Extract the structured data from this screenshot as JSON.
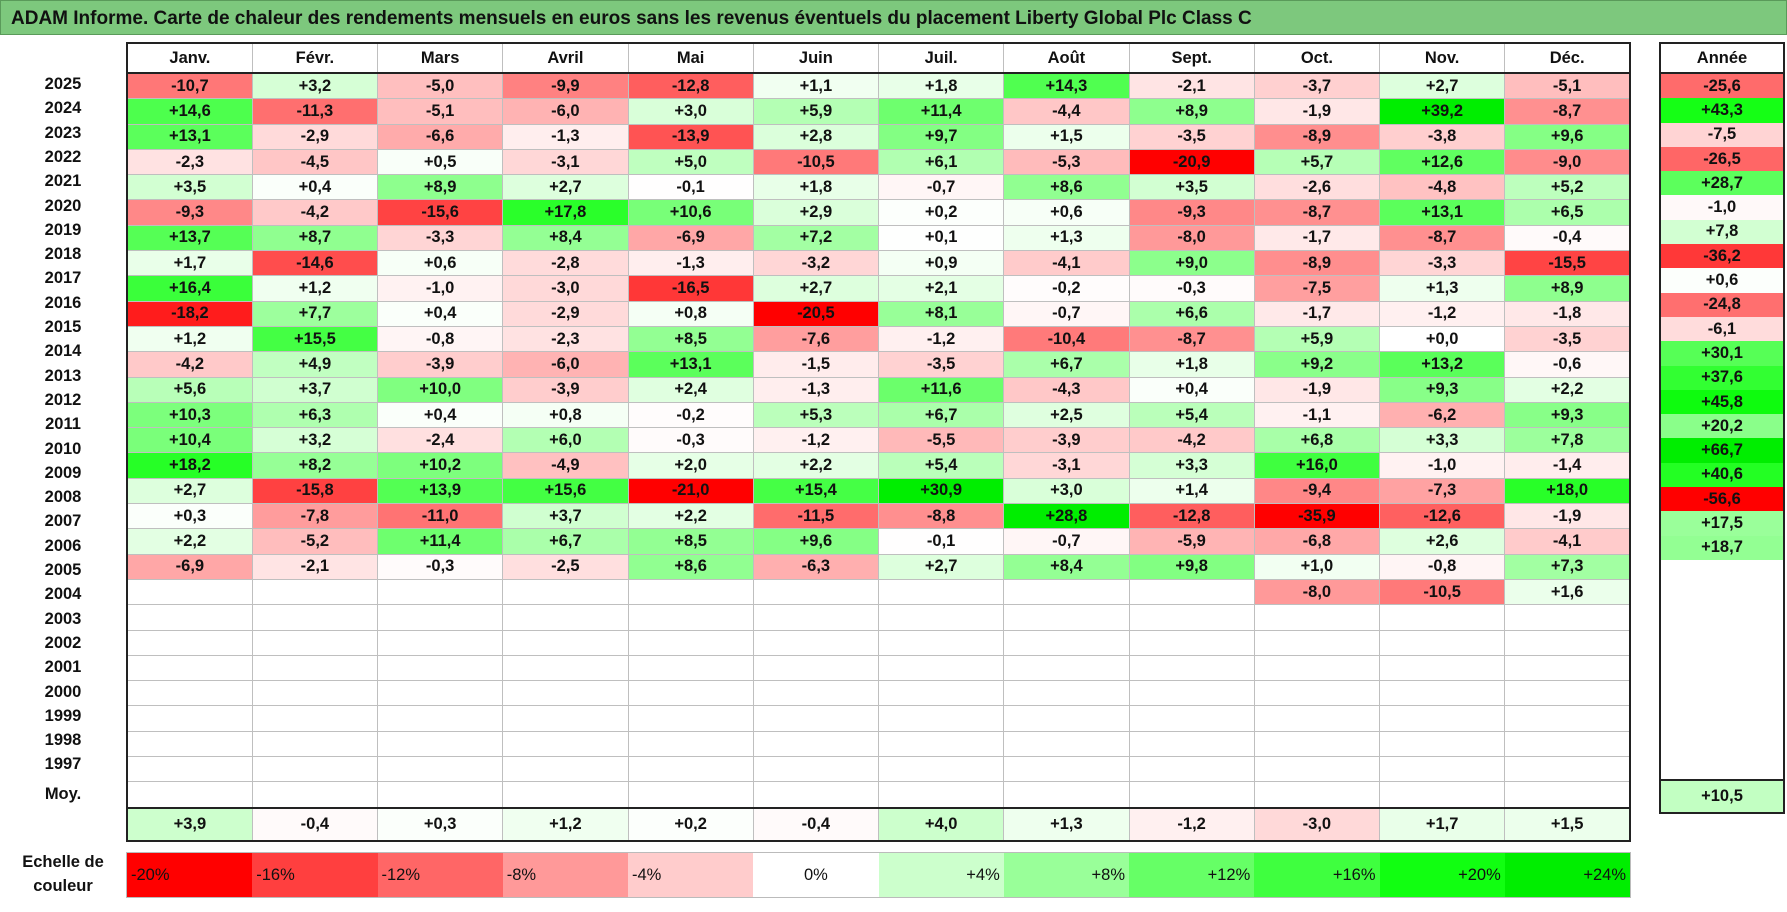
{
  "title": "ADAM Informe. Carte de chaleur des rendements mensuels en euros sans les revenus éventuels du placement Liberty Global Plc Class C",
  "chart_data": {
    "type": "heatmap",
    "months": [
      "Janv.",
      "Févr.",
      "Mars",
      "Avril",
      "Mai",
      "Juin",
      "Juil.",
      "Août",
      "Sept.",
      "Oct.",
      "Nov.",
      "Déc."
    ],
    "year_col_label": "Année",
    "rows": [
      {
        "year": "2025",
        "values": [
          "-10,7",
          "+3,2",
          "-5,0",
          "-9,9",
          "-12,8",
          "+1,1",
          "+1,8",
          "+14,3",
          "-2,1",
          "-3,7",
          "+2,7",
          "-5,1"
        ],
        "annual": "-25,6"
      },
      {
        "year": "2024",
        "values": [
          "+14,6",
          "-11,3",
          "-5,1",
          "-6,0",
          "+3,0",
          "+5,9",
          "+11,4",
          "-4,4",
          "+8,9",
          "-1,9",
          "+39,2",
          "-8,7"
        ],
        "annual": "+43,3"
      },
      {
        "year": "2023",
        "values": [
          "+13,1",
          "-2,9",
          "-6,6",
          "-1,3",
          "-13,9",
          "+2,8",
          "+9,7",
          "+1,5",
          "-3,5",
          "-8,9",
          "-3,8",
          "+9,6"
        ],
        "annual": "-7,5"
      },
      {
        "year": "2022",
        "values": [
          "-2,3",
          "-4,5",
          "+0,5",
          "-3,1",
          "+5,0",
          "-10,5",
          "+6,1",
          "-5,3",
          "-20,9",
          "+5,7",
          "+12,6",
          "-9,0"
        ],
        "annual": "-26,5"
      },
      {
        "year": "2021",
        "values": [
          "+3,5",
          "+0,4",
          "+8,9",
          "+2,7",
          "-0,1",
          "+1,8",
          "-0,7",
          "+8,6",
          "+3,5",
          "-2,6",
          "-4,8",
          "+5,2"
        ],
        "annual": "+28,7"
      },
      {
        "year": "2020",
        "values": [
          "-9,3",
          "-4,2",
          "-15,6",
          "+17,8",
          "+10,6",
          "+2,9",
          "+0,2",
          "+0,6",
          "-9,3",
          "-8,7",
          "+13,1",
          "+6,5"
        ],
        "annual": "-1,0"
      },
      {
        "year": "2019",
        "values": [
          "+13,7",
          "+8,7",
          "-3,3",
          "+8,4",
          "-6,9",
          "+7,2",
          "+0,1",
          "+1,3",
          "-8,0",
          "-1,7",
          "-8,7",
          "-0,4"
        ],
        "annual": "+7,8"
      },
      {
        "year": "2018",
        "values": [
          "+1,7",
          "-14,6",
          "+0,6",
          "-2,8",
          "-1,3",
          "-3,2",
          "+0,9",
          "-4,1",
          "+9,0",
          "-8,9",
          "-3,3",
          "-15,5"
        ],
        "annual": "-36,2"
      },
      {
        "year": "2017",
        "values": [
          "+16,4",
          "+1,2",
          "-1,0",
          "-3,0",
          "-16,5",
          "+2,7",
          "+2,1",
          "-0,2",
          "-0,3",
          "-7,5",
          "+1,3",
          "+8,9"
        ],
        "annual": "+0,6"
      },
      {
        "year": "2016",
        "values": [
          "-18,2",
          "+7,7",
          "+0,4",
          "-2,9",
          "+0,8",
          "-20,5",
          "+8,1",
          "-0,7",
          "+6,6",
          "-1,7",
          "-1,2",
          "-1,8"
        ],
        "annual": "-24,8"
      },
      {
        "year": "2015",
        "values": [
          "+1,2",
          "+15,5",
          "-0,8",
          "-2,3",
          "+8,5",
          "-7,6",
          "-1,2",
          "-10,4",
          "-8,7",
          "+5,9",
          "+0,0",
          "-3,5"
        ],
        "annual": "-6,1"
      },
      {
        "year": "2014",
        "values": [
          "-4,2",
          "+4,9",
          "-3,9",
          "-6,0",
          "+13,1",
          "-1,5",
          "-3,5",
          "+6,7",
          "+1,8",
          "+9,2",
          "+13,2",
          "-0,6"
        ],
        "annual": "+30,1"
      },
      {
        "year": "2013",
        "values": [
          "+5,6",
          "+3,7",
          "+10,0",
          "-3,9",
          "+2,4",
          "-1,3",
          "+11,6",
          "-4,3",
          "+0,4",
          "-1,9",
          "+9,3",
          "+2,2"
        ],
        "annual": "+37,6"
      },
      {
        "year": "2012",
        "values": [
          "+10,3",
          "+6,3",
          "+0,4",
          "+0,8",
          "-0,2",
          "+5,3",
          "+6,7",
          "+2,5",
          "+5,4",
          "-1,1",
          "-6,2",
          "+9,3"
        ],
        "annual": "+45,8"
      },
      {
        "year": "2011",
        "values": [
          "+10,4",
          "+3,2",
          "-2,4",
          "+6,0",
          "-0,3",
          "-1,2",
          "-5,5",
          "-3,9",
          "-4,2",
          "+6,8",
          "+3,3",
          "+7,8"
        ],
        "annual": "+20,2"
      },
      {
        "year": "2010",
        "values": [
          "+18,2",
          "+8,2",
          "+10,2",
          "-4,9",
          "+2,0",
          "+2,2",
          "+5,4",
          "-3,1",
          "+3,3",
          "+16,0",
          "-1,0",
          "-1,4"
        ],
        "annual": "+66,7"
      },
      {
        "year": "2009",
        "values": [
          "+2,7",
          "-15,8",
          "+13,9",
          "+15,6",
          "-21,0",
          "+15,4",
          "+30,9",
          "+3,0",
          "+1,4",
          "-9,4",
          "-7,3",
          "+18,0"
        ],
        "annual": "+40,6"
      },
      {
        "year": "2008",
        "values": [
          "+0,3",
          "-7,8",
          "-11,0",
          "+3,7",
          "+2,2",
          "-11,5",
          "-8,8",
          "+28,8",
          "-12,8",
          "-35,9",
          "-12,6",
          "-1,9"
        ],
        "annual": "-56,6"
      },
      {
        "year": "2007",
        "values": [
          "+2,2",
          "-5,2",
          "+11,4",
          "+6,7",
          "+8,5",
          "+9,6",
          "-0,1",
          "-0,7",
          "-5,9",
          "-6,8",
          "+2,6",
          "-4,1"
        ],
        "annual": "+17,5"
      },
      {
        "year": "2006",
        "values": [
          "-6,9",
          "-2,1",
          "-0,3",
          "-2,5",
          "+8,6",
          "-6,3",
          "+2,7",
          "+8,4",
          "+9,8",
          "+1,0",
          "-0,8",
          "+7,3"
        ],
        "annual": "+18,7"
      },
      {
        "year": "2005",
        "values": [
          "",
          "",
          "",
          "",
          "",
          "",
          "",
          "",
          "",
          "-8,0",
          "-10,5",
          "+1,6"
        ],
        "annual": ""
      },
      {
        "year": "2004",
        "values": [
          "",
          "",
          "",
          "",
          "",
          "",
          "",
          "",
          "",
          "",
          "",
          ""
        ],
        "annual": ""
      },
      {
        "year": "2003",
        "values": [
          "",
          "",
          "",
          "",
          "",
          "",
          "",
          "",
          "",
          "",
          "",
          ""
        ],
        "annual": ""
      },
      {
        "year": "2002",
        "values": [
          "",
          "",
          "",
          "",
          "",
          "",
          "",
          "",
          "",
          "",
          "",
          ""
        ],
        "annual": ""
      },
      {
        "year": "2001",
        "values": [
          "",
          "",
          "",
          "",
          "",
          "",
          "",
          "",
          "",
          "",
          "",
          ""
        ],
        "annual": ""
      },
      {
        "year": "2000",
        "values": [
          "",
          "",
          "",
          "",
          "",
          "",
          "",
          "",
          "",
          "",
          "",
          ""
        ],
        "annual": ""
      },
      {
        "year": "1999",
        "values": [
          "",
          "",
          "",
          "",
          "",
          "",
          "",
          "",
          "",
          "",
          "",
          ""
        ],
        "annual": ""
      },
      {
        "year": "1998",
        "values": [
          "",
          "",
          "",
          "",
          "",
          "",
          "",
          "",
          "",
          "",
          "",
          ""
        ],
        "annual": ""
      },
      {
        "year": "1997",
        "values": [
          "",
          "",
          "",
          "",
          "",
          "",
          "",
          "",
          "",
          "",
          "",
          ""
        ],
        "annual": ""
      }
    ],
    "average": {
      "label": "Moy.",
      "values": [
        "+3,9",
        "-0,4",
        "+0,3",
        "+1,2",
        "+0,2",
        "-0,4",
        "+4,0",
        "+1,3",
        "-1,2",
        "-3,0",
        "+1,7",
        "+1,5"
      ],
      "annual": "+10,5"
    },
    "scale": {
      "label": "Echelle de couleur",
      "stops": [
        {
          "label": "-20%",
          "value": -20,
          "color": "#ff0000"
        },
        {
          "label": "-16%",
          "value": -16,
          "color": "#ff3f3f"
        },
        {
          "label": "-12%",
          "value": -12,
          "color": "#ff6666"
        },
        {
          "label": "-8%",
          "value": -8,
          "color": "#ff9999"
        },
        {
          "label": "-4%",
          "value": -4,
          "color": "#ffcccc"
        },
        {
          "label": "0%",
          "value": 0,
          "color": "#ffffff"
        },
        {
          "label": "+4%",
          "value": 4,
          "color": "#ccffcc"
        },
        {
          "label": "+8%",
          "value": 8,
          "color": "#99ff99"
        },
        {
          "label": "+12%",
          "value": 12,
          "color": "#66ff66"
        },
        {
          "label": "+16%",
          "value": 16,
          "color": "#3fff3f"
        },
        {
          "label": "+20%",
          "value": 20,
          "color": "#11ff11"
        },
        {
          "label": "+24%",
          "value": 24,
          "color": "#00ee00"
        }
      ]
    },
    "colors": {
      "title_bg": "#7dc87d",
      "neg": "#ff0000",
      "pos": "#00ee00",
      "neutral": "#ffffff"
    }
  }
}
